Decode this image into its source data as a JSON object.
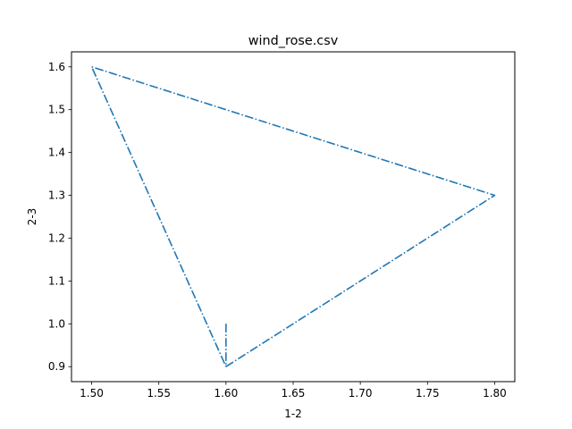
{
  "chart_data": {
    "type": "line",
    "title": "wind_rose.csv",
    "xlabel": "1-2",
    "ylabel": "2-3",
    "xlim": [
      1.485,
      1.815
    ],
    "ylim": [
      0.865,
      1.635
    ],
    "xticks": [
      "1.50",
      "1.55",
      "1.60",
      "1.65",
      "1.70",
      "1.75",
      "1.80"
    ],
    "yticks": [
      "0.9",
      "1.0",
      "1.1",
      "1.2",
      "1.3",
      "1.4",
      "1.5",
      "1.6"
    ],
    "grid": false,
    "line_style": "dash-dot",
    "series": [
      {
        "color": "#1f77b4",
        "x": [
          1.6,
          1.6,
          1.8,
          1.5,
          1.6
        ],
        "y": [
          1.0,
          0.9,
          1.3,
          1.6,
          0.9
        ]
      }
    ]
  }
}
